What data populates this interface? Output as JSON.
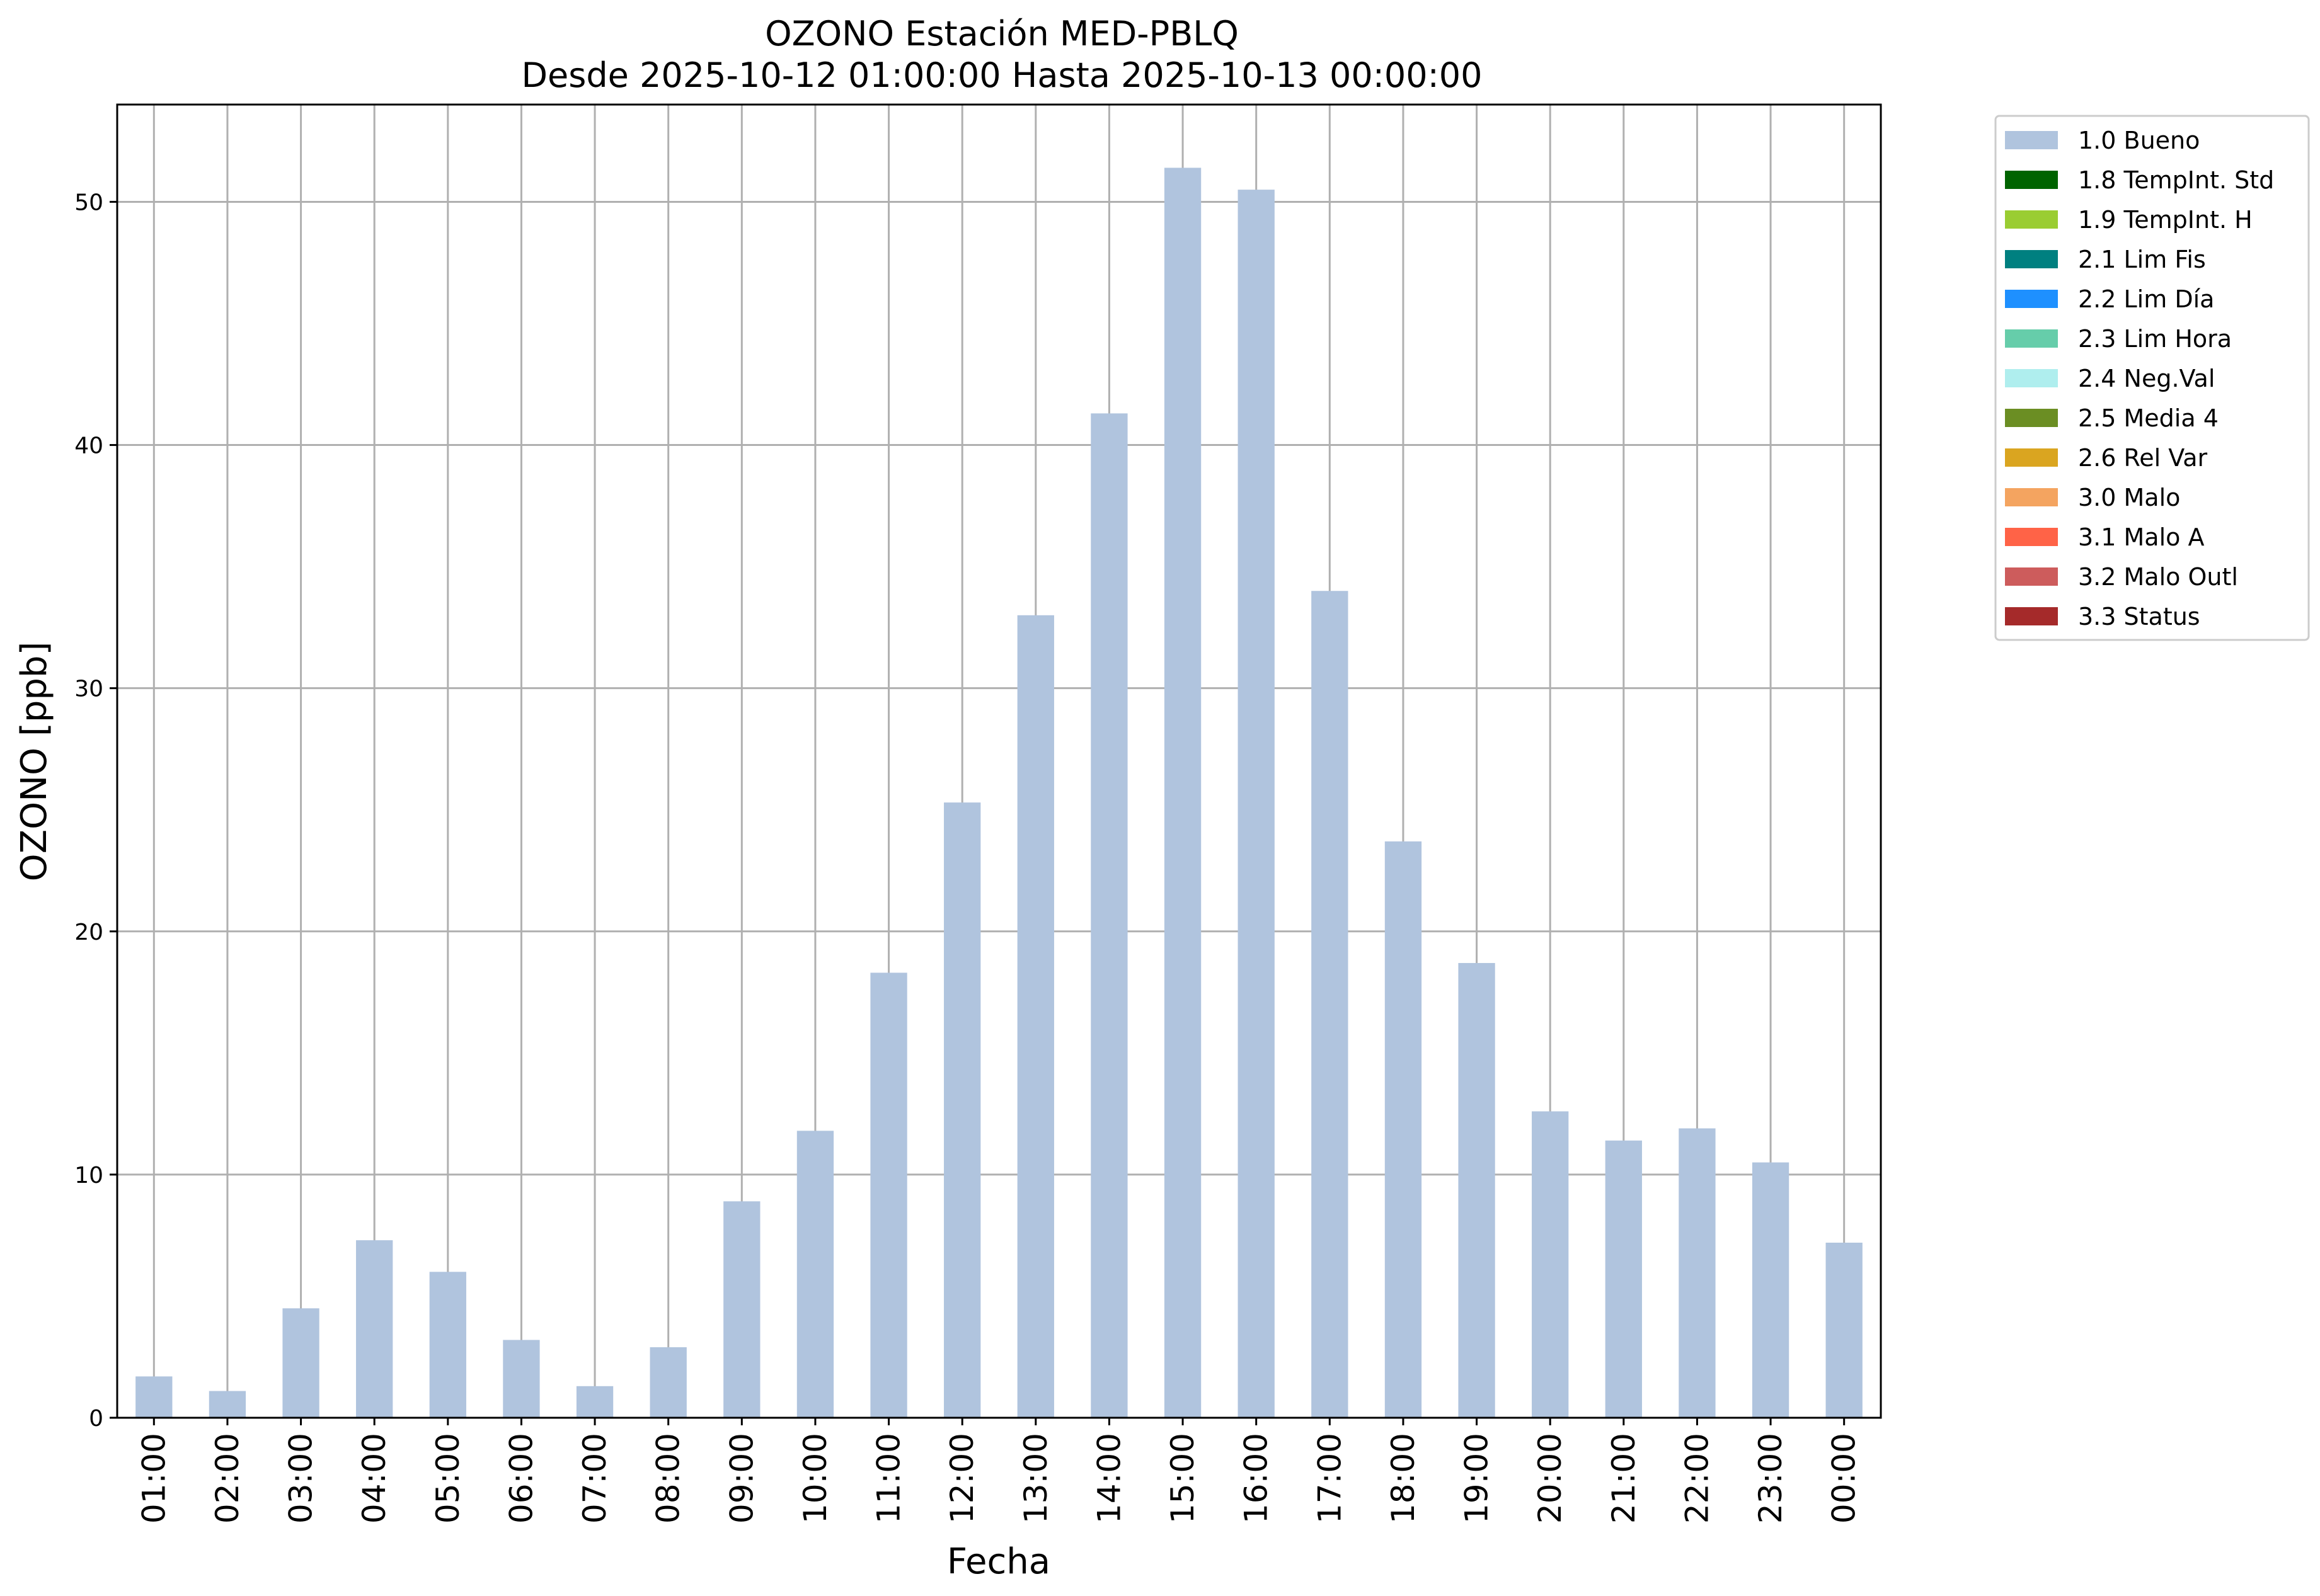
{
  "chart_data": {
    "type": "bar",
    "title": "OZONO Estación MED-PBLQ",
    "subtitle": "Desde 2025-10-12 01:00:00 Hasta 2025-10-13 00:00:00",
    "xlabel": "Fecha",
    "ylabel": "OZONO [ppb]",
    "ylim": [
      0,
      54
    ],
    "yticks": [
      0,
      10,
      20,
      30,
      40,
      50
    ],
    "grid": true,
    "legend_position": "outside-top-right",
    "categories": [
      "01:00",
      "02:00",
      "03:00",
      "04:00",
      "05:00",
      "06:00",
      "07:00",
      "08:00",
      "09:00",
      "10:00",
      "11:00",
      "12:00",
      "13:00",
      "14:00",
      "15:00",
      "16:00",
      "17:00",
      "18:00",
      "19:00",
      "20:00",
      "21:00",
      "22:00",
      "23:00",
      "00:00"
    ],
    "series": [
      {
        "name": "1.0 Bueno",
        "color": "#b0c4de",
        "values": [
          1.7,
          1.1,
          4.5,
          7.3,
          6.0,
          3.2,
          1.3,
          2.9,
          8.9,
          11.8,
          18.3,
          25.3,
          33.0,
          41.3,
          51.4,
          50.5,
          34.0,
          23.7,
          18.7,
          12.6,
          11.4,
          11.9,
          10.5,
          7.2
        ]
      }
    ],
    "legend": [
      {
        "label": "1.0 Bueno",
        "color": "#b0c4de"
      },
      {
        "label": "1.8 TempInt. Std",
        "color": "#006400"
      },
      {
        "label": "1.9 TempInt. H",
        "color": "#9acd32"
      },
      {
        "label": "2.1 Lim Fis",
        "color": "#008080"
      },
      {
        "label": "2.2 Lim Día",
        "color": "#1e90ff"
      },
      {
        "label": "2.3 Lim Hora",
        "color": "#66cdaa"
      },
      {
        "label": "2.4 Neg.Val",
        "color": "#afeeee"
      },
      {
        "label": "2.5 Media 4",
        "color": "#6b8e23"
      },
      {
        "label": "2.6 Rel Var",
        "color": "#daa520"
      },
      {
        "label": "3.0 Malo",
        "color": "#f4a460"
      },
      {
        "label": "3.1 Malo A",
        "color": "#ff6347"
      },
      {
        "label": "3.2 Malo Outl",
        "color": "#cd5c5c"
      },
      {
        "label": "3.3 Status",
        "color": "#a52a2a"
      }
    ]
  }
}
